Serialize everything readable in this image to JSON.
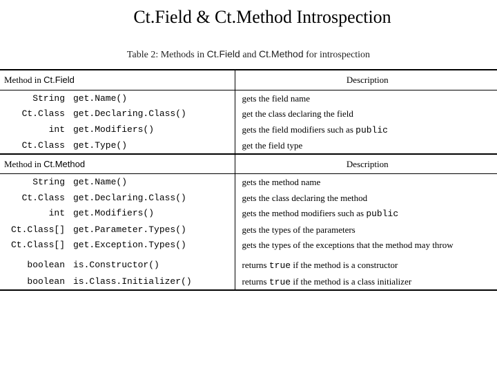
{
  "title": "Ct.Field & Ct.Method  Introspection",
  "caption_prefix": "Table 2:  Methods in ",
  "caption_cls1": "Ct.Field",
  "caption_and": " and ",
  "caption_cls2": "Ct.Method",
  "caption_suffix": " for introspection",
  "hdr": {
    "method": "Method",
    "in": "   in ",
    "ctfield": "Ct.Field",
    "ctmethod": "Ct.Method",
    "desc": "Description"
  },
  "field_rows": [
    {
      "ret": "String",
      "meth": "get.Name()",
      "desc": "gets the field name"
    },
    {
      "ret": "Ct.Class",
      "meth": "get.Declaring.Class()",
      "desc": "get the class declaring the field"
    },
    {
      "ret": "int",
      "meth": "get.Modifiers()",
      "desc_pre": "gets the field modifiers such as ",
      "desc_mono": "public"
    },
    {
      "ret": "Ct.Class",
      "meth": "get.Type()",
      "desc": "get the field type"
    }
  ],
  "method_rows": [
    {
      "ret": "String",
      "meth": "get.Name()",
      "desc": "gets the method name"
    },
    {
      "ret": "Ct.Class",
      "meth": "get.Declaring.Class()",
      "desc": "gets the class declaring the method"
    },
    {
      "ret": "int",
      "meth": "get.Modifiers()",
      "desc_pre": "gets the method modifiers such as ",
      "desc_mono": "public"
    },
    {
      "ret": "Ct.Class[]",
      "meth": "get.Parameter.Types()",
      "desc": "gets the types of the parameters"
    },
    {
      "ret": "Ct.Class[]",
      "meth": "get.Exception.Types()",
      "desc": "gets the types of the exceptions that the method may throw"
    }
  ],
  "bool_rows": [
    {
      "ret": "boolean",
      "meth": "is.Constructor()",
      "desc_pre": "returns ",
      "desc_mono": "true",
      "desc_post": " if the method is a constructor"
    },
    {
      "ret": "boolean",
      "meth": "is.Class.Initializer()",
      "desc_pre": "returns ",
      "desc_mono": "true",
      "desc_post": " if the method is a class initializer"
    }
  ]
}
